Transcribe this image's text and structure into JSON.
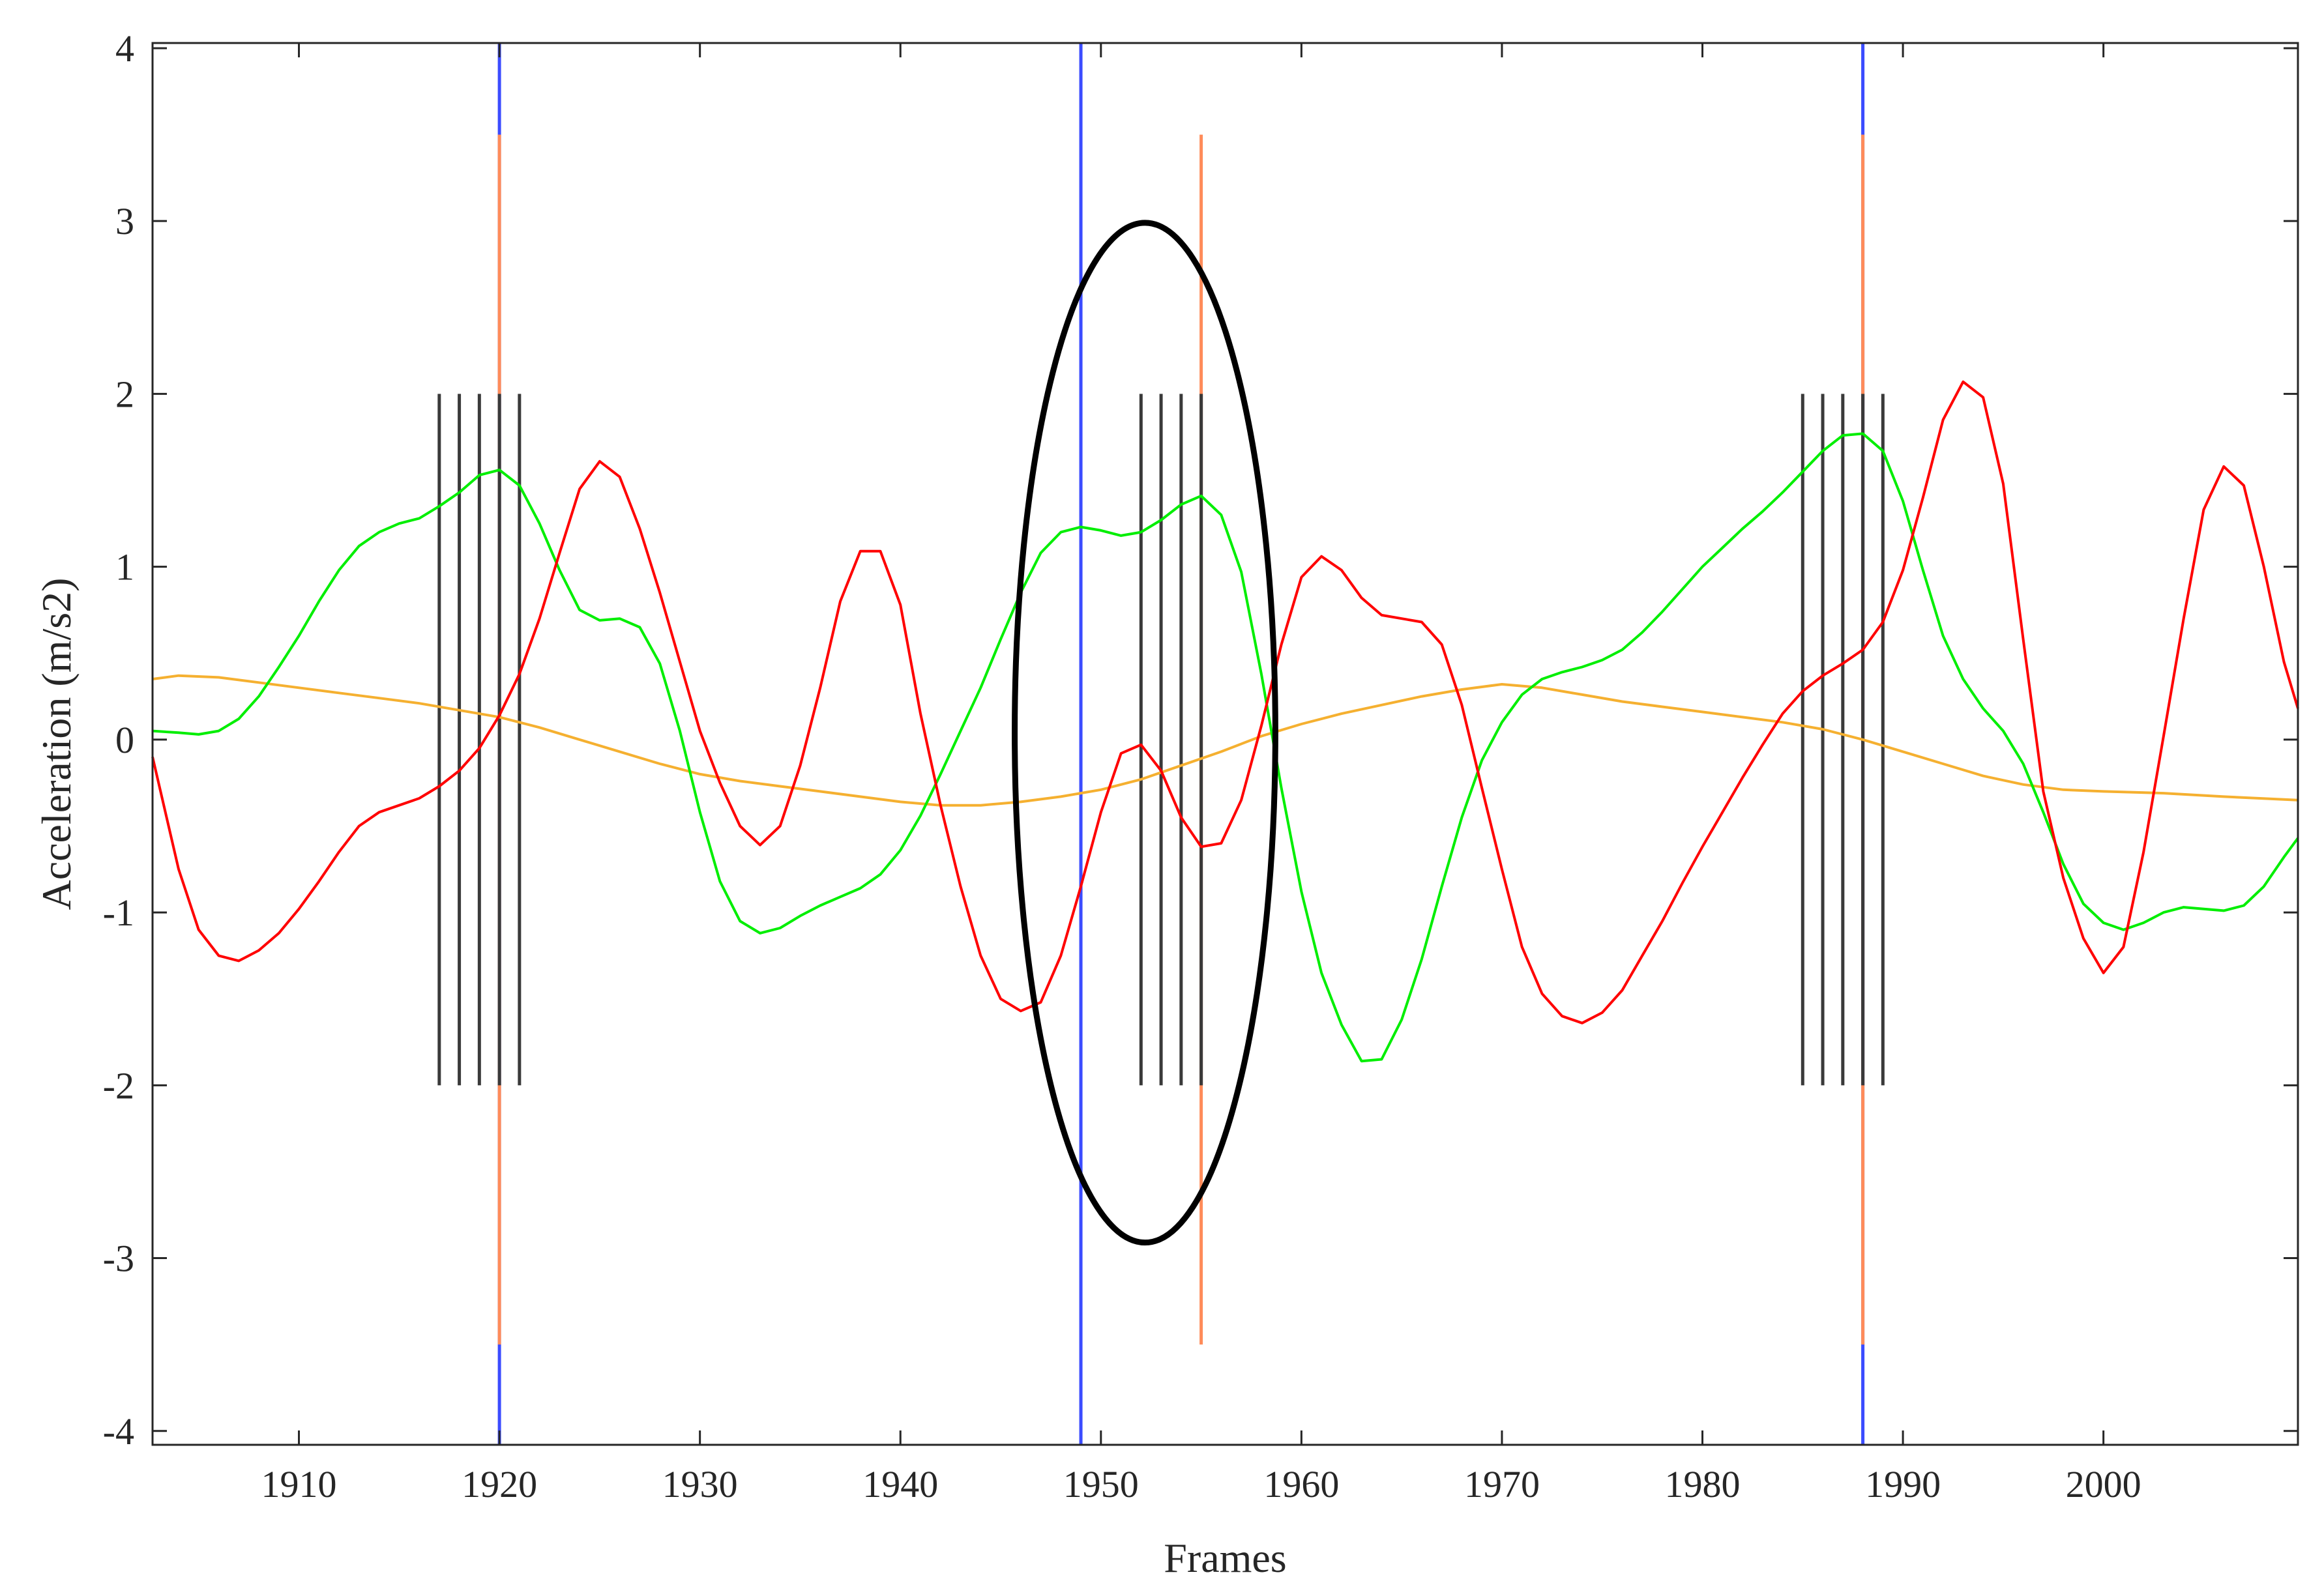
{
  "chart_data": {
    "type": "line",
    "title": "",
    "xlabel": "Frames",
    "ylabel": "Acceleration (m/s2)",
    "xlim": [
      1902.7,
      2009.7
    ],
    "ylim": [
      -4.08,
      4.03
    ],
    "xticks": [
      1910,
      1920,
      1930,
      1940,
      1950,
      1960,
      1970,
      1980,
      1990,
      2000
    ],
    "yticks": [
      -4,
      -3,
      -2,
      -1,
      0,
      1,
      2,
      3,
      4
    ],
    "grid": false,
    "legend": "none",
    "series": [
      {
        "color": "#ff0000",
        "points": [
          [
            1902.7,
            -0.1
          ],
          [
            1904,
            -0.75
          ],
          [
            1905,
            -1.1
          ],
          [
            1906,
            -1.25
          ],
          [
            1907,
            -1.28
          ],
          [
            1908,
            -1.22
          ],
          [
            1909,
            -1.12
          ],
          [
            1910,
            -0.98
          ],
          [
            1911,
            -0.82
          ],
          [
            1912,
            -0.65
          ],
          [
            1913,
            -0.5
          ],
          [
            1914,
            -0.42
          ],
          [
            1915,
            -0.38
          ],
          [
            1916,
            -0.34
          ],
          [
            1917,
            -0.27
          ],
          [
            1918,
            -0.18
          ],
          [
            1919,
            -0.05
          ],
          [
            1920,
            0.14
          ],
          [
            1921,
            0.38
          ],
          [
            1922,
            0.7
          ],
          [
            1923,
            1.08
          ],
          [
            1924,
            1.45
          ],
          [
            1925,
            1.61
          ],
          [
            1926,
            1.52
          ],
          [
            1927,
            1.22
          ],
          [
            1928,
            0.85
          ],
          [
            1929,
            0.45
          ],
          [
            1930,
            0.05
          ],
          [
            1931,
            -0.25
          ],
          [
            1932,
            -0.5
          ],
          [
            1933,
            -0.61
          ],
          [
            1934,
            -0.5
          ],
          [
            1935,
            -0.15
          ],
          [
            1936,
            0.3
          ],
          [
            1937,
            0.8
          ],
          [
            1938,
            1.09
          ],
          [
            1939,
            1.09
          ],
          [
            1940,
            0.78
          ],
          [
            1941,
            0.15
          ],
          [
            1942,
            -0.38
          ],
          [
            1943,
            -0.85
          ],
          [
            1944,
            -1.25
          ],
          [
            1945,
            -1.5
          ],
          [
            1946,
            -1.57
          ],
          [
            1947,
            -1.52
          ],
          [
            1948,
            -1.25
          ],
          [
            1949,
            -0.85
          ],
          [
            1950,
            -0.42
          ],
          [
            1951,
            -0.08
          ],
          [
            1952,
            -0.03
          ],
          [
            1953,
            -0.18
          ],
          [
            1954,
            -0.45
          ],
          [
            1955,
            -0.62
          ],
          [
            1956,
            -0.6
          ],
          [
            1957,
            -0.35
          ],
          [
            1958,
            0.08
          ],
          [
            1959,
            0.55
          ],
          [
            1960,
            0.94
          ],
          [
            1961,
            1.06
          ],
          [
            1962,
            0.98
          ],
          [
            1963,
            0.82
          ],
          [
            1964,
            0.72
          ],
          [
            1965,
            0.7
          ],
          [
            1966,
            0.68
          ],
          [
            1967,
            0.55
          ],
          [
            1968,
            0.2
          ],
          [
            1969,
            -0.28
          ],
          [
            1970,
            -0.75
          ],
          [
            1971,
            -1.2
          ],
          [
            1972,
            -1.47
          ],
          [
            1973,
            -1.6
          ],
          [
            1974,
            -1.64
          ],
          [
            1975,
            -1.58
          ],
          [
            1976,
            -1.45
          ],
          [
            1977,
            -1.25
          ],
          [
            1978,
            -1.05
          ],
          [
            1979,
            -0.83
          ],
          [
            1980,
            -0.62
          ],
          [
            1981,
            -0.42
          ],
          [
            1982,
            -0.22
          ],
          [
            1983,
            -0.03
          ],
          [
            1984,
            0.15
          ],
          [
            1985,
            0.28
          ],
          [
            1986,
            0.37
          ],
          [
            1987,
            0.44
          ],
          [
            1988,
            0.52
          ],
          [
            1989,
            0.68
          ],
          [
            1990,
            0.98
          ],
          [
            1991,
            1.4
          ],
          [
            1992,
            1.85
          ],
          [
            1993,
            2.07
          ],
          [
            1994,
            1.98
          ],
          [
            1995,
            1.48
          ],
          [
            1996,
            0.58
          ],
          [
            1997,
            -0.3
          ],
          [
            1998,
            -0.8
          ],
          [
            1999,
            -1.15
          ],
          [
            2000,
            -1.35
          ],
          [
            2001,
            -1.2
          ],
          [
            2002,
            -0.65
          ],
          [
            2003,
            0.02
          ],
          [
            2004,
            0.7
          ],
          [
            2005,
            1.33
          ],
          [
            2006,
            1.58
          ],
          [
            2007,
            1.47
          ],
          [
            2008,
            1.0
          ],
          [
            2009,
            0.45
          ],
          [
            2009.7,
            0.18
          ]
        ]
      },
      {
        "color": "#00ee00",
        "points": [
          [
            1902.7,
            0.05
          ],
          [
            1904,
            0.04
          ],
          [
            1905,
            0.03
          ],
          [
            1906,
            0.05
          ],
          [
            1907,
            0.12
          ],
          [
            1908,
            0.25
          ],
          [
            1909,
            0.42
          ],
          [
            1910,
            0.6
          ],
          [
            1911,
            0.8
          ],
          [
            1912,
            0.98
          ],
          [
            1913,
            1.12
          ],
          [
            1914,
            1.2
          ],
          [
            1915,
            1.25
          ],
          [
            1916,
            1.28
          ],
          [
            1917,
            1.35
          ],
          [
            1918,
            1.43
          ],
          [
            1919,
            1.53
          ],
          [
            1920,
            1.56
          ],
          [
            1921,
            1.47
          ],
          [
            1922,
            1.25
          ],
          [
            1923,
            0.98
          ],
          [
            1924,
            0.75
          ],
          [
            1925,
            0.69
          ],
          [
            1926,
            0.7
          ],
          [
            1927,
            0.65
          ],
          [
            1928,
            0.44
          ],
          [
            1929,
            0.05
          ],
          [
            1930,
            -0.42
          ],
          [
            1931,
            -0.82
          ],
          [
            1932,
            -1.05
          ],
          [
            1933,
            -1.12
          ],
          [
            1934,
            -1.09
          ],
          [
            1935,
            -1.02
          ],
          [
            1936,
            -0.96
          ],
          [
            1937,
            -0.91
          ],
          [
            1938,
            -0.86
          ],
          [
            1939,
            -0.78
          ],
          [
            1940,
            -0.64
          ],
          [
            1941,
            -0.44
          ],
          [
            1942,
            -0.2
          ],
          [
            1943,
            0.05
          ],
          [
            1944,
            0.3
          ],
          [
            1945,
            0.58
          ],
          [
            1946,
            0.85
          ],
          [
            1947,
            1.08
          ],
          [
            1948,
            1.2
          ],
          [
            1949,
            1.23
          ],
          [
            1950,
            1.21
          ],
          [
            1951,
            1.18
          ],
          [
            1952,
            1.2
          ],
          [
            1953,
            1.27
          ],
          [
            1954,
            1.36
          ],
          [
            1955,
            1.41
          ],
          [
            1956,
            1.3
          ],
          [
            1957,
            0.97
          ],
          [
            1958,
            0.38
          ],
          [
            1959,
            -0.28
          ],
          [
            1960,
            -0.88
          ],
          [
            1961,
            -1.35
          ],
          [
            1962,
            -1.65
          ],
          [
            1963,
            -1.86
          ],
          [
            1964,
            -1.85
          ],
          [
            1965,
            -1.62
          ],
          [
            1966,
            -1.27
          ],
          [
            1967,
            -0.85
          ],
          [
            1968,
            -0.45
          ],
          [
            1969,
            -0.12
          ],
          [
            1970,
            0.1
          ],
          [
            1971,
            0.26
          ],
          [
            1972,
            0.35
          ],
          [
            1973,
            0.39
          ],
          [
            1974,
            0.42
          ],
          [
            1975,
            0.46
          ],
          [
            1976,
            0.52
          ],
          [
            1977,
            0.62
          ],
          [
            1978,
            0.74
          ],
          [
            1979,
            0.87
          ],
          [
            1980,
            1.0
          ],
          [
            1981,
            1.11
          ],
          [
            1982,
            1.22
          ],
          [
            1983,
            1.32
          ],
          [
            1984,
            1.43
          ],
          [
            1985,
            1.55
          ],
          [
            1986,
            1.67
          ],
          [
            1987,
            1.76
          ],
          [
            1988,
            1.77
          ],
          [
            1989,
            1.67
          ],
          [
            1990,
            1.38
          ],
          [
            1991,
            0.98
          ],
          [
            1992,
            0.6
          ],
          [
            1993,
            0.35
          ],
          [
            1994,
            0.18
          ],
          [
            1995,
            0.05
          ],
          [
            1996,
            -0.14
          ],
          [
            1997,
            -0.42
          ],
          [
            1998,
            -0.72
          ],
          [
            1999,
            -0.95
          ],
          [
            2000,
            -1.06
          ],
          [
            2001,
            -1.1
          ],
          [
            2002,
            -1.06
          ],
          [
            2003,
            -1.0
          ],
          [
            2004,
            -0.97
          ],
          [
            2005,
            -0.98
          ],
          [
            2006,
            -0.99
          ],
          [
            2007,
            -0.96
          ],
          [
            2008,
            -0.85
          ],
          [
            2009,
            -0.68
          ],
          [
            2009.7,
            -0.57
          ]
        ]
      },
      {
        "color": "#f5b030",
        "points": [
          [
            1902.7,
            0.35
          ],
          [
            1904,
            0.37
          ],
          [
            1906,
            0.36
          ],
          [
            1908,
            0.33
          ],
          [
            1910,
            0.3
          ],
          [
            1912,
            0.27
          ],
          [
            1914,
            0.24
          ],
          [
            1916,
            0.21
          ],
          [
            1918,
            0.17
          ],
          [
            1920,
            0.13
          ],
          [
            1922,
            0.07
          ],
          [
            1924,
            0.0
          ],
          [
            1926,
            -0.07
          ],
          [
            1928,
            -0.14
          ],
          [
            1930,
            -0.2
          ],
          [
            1932,
            -0.24
          ],
          [
            1934,
            -0.27
          ],
          [
            1936,
            -0.3
          ],
          [
            1938,
            -0.33
          ],
          [
            1940,
            -0.36
          ],
          [
            1942,
            -0.38
          ],
          [
            1944,
            -0.38
          ],
          [
            1946,
            -0.36
          ],
          [
            1948,
            -0.33
          ],
          [
            1950,
            -0.29
          ],
          [
            1952,
            -0.23
          ],
          [
            1954,
            -0.15
          ],
          [
            1956,
            -0.07
          ],
          [
            1958,
            0.02
          ],
          [
            1960,
            0.09
          ],
          [
            1962,
            0.15
          ],
          [
            1964,
            0.2
          ],
          [
            1966,
            0.25
          ],
          [
            1968,
            0.29
          ],
          [
            1970,
            0.32
          ],
          [
            1972,
            0.3
          ],
          [
            1974,
            0.26
          ],
          [
            1976,
            0.22
          ],
          [
            1978,
            0.19
          ],
          [
            1980,
            0.16
          ],
          [
            1982,
            0.13
          ],
          [
            1984,
            0.1
          ],
          [
            1986,
            0.06
          ],
          [
            1988,
            0.0
          ],
          [
            1990,
            -0.07
          ],
          [
            1992,
            -0.14
          ],
          [
            1994,
            -0.21
          ],
          [
            1996,
            -0.26
          ],
          [
            1998,
            -0.29
          ],
          [
            2000,
            -0.3
          ],
          [
            2003,
            -0.31
          ],
          [
            2006,
            -0.33
          ],
          [
            2009.7,
            -0.35
          ]
        ]
      }
    ],
    "vertical_markers": {
      "blue": {
        "color": "#3b4cff",
        "x": [
          1920,
          1949,
          1988
        ],
        "y_range": [
          -4.08,
          4.03
        ]
      },
      "orange": {
        "color": "#ff8c5a",
        "x": [
          1920,
          1955,
          1988
        ],
        "y_range": [
          -3.5,
          3.5
        ]
      },
      "black_groups": {
        "color": "#3a3a3a",
        "x": [
          1917,
          1918,
          1919,
          1920,
          1921,
          1952,
          1953,
          1954,
          1955,
          1985,
          1986,
          1987,
          1988,
          1989
        ],
        "y_range": [
          -2,
          2
        ]
      }
    },
    "annotations": [
      {
        "type": "ellipse",
        "color": "#000000",
        "cx": 1952.2,
        "cy": 0.04,
        "rx": 6.5,
        "ry": 2.95
      }
    ]
  }
}
